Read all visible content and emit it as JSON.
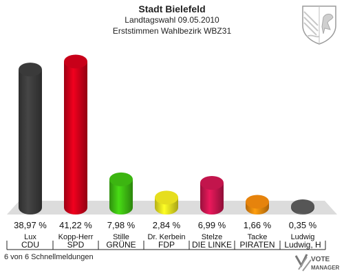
{
  "header": {
    "title": "Stadt Bielefeld",
    "subtitle": "Landtagswahl 09.05.2010",
    "subtitle2": "Erststimmen Wahlbezirk WBZ31"
  },
  "footer": {
    "note": "6 von 6 Schnellmeldungen"
  },
  "logo": {
    "line1": "VOTE",
    "line2": "MANAGER"
  },
  "chart_data": {
    "type": "bar",
    "title": "Stadt Bielefeld",
    "categories": [
      "CDU",
      "SPD",
      "GRÜNE",
      "FDP",
      "DIE LINKE",
      "PIRATEN",
      "Ludwig, H"
    ],
    "candidates": [
      "Lux",
      "Kopp-Herr",
      "Stille",
      "Dr. Kerbein",
      "Stelze",
      "Tacke",
      "Ludwig"
    ],
    "values": [
      38.97,
      41.22,
      7.98,
      2.84,
      6.99,
      1.66,
      0.35
    ],
    "value_labels": [
      "38,97 %",
      "41,22 %",
      "7,98 %",
      "2,84 %",
      "6,99 %",
      "1,66 %",
      "0,35 %"
    ],
    "colors": [
      "#3d3d3d",
      "#d2001a",
      "#3fbf12",
      "#f2ea20",
      "#cc1650",
      "#f28a0d",
      "#5a5a5a"
    ],
    "ylim": [
      0,
      45
    ],
    "grid": false,
    "legend": "none"
  }
}
